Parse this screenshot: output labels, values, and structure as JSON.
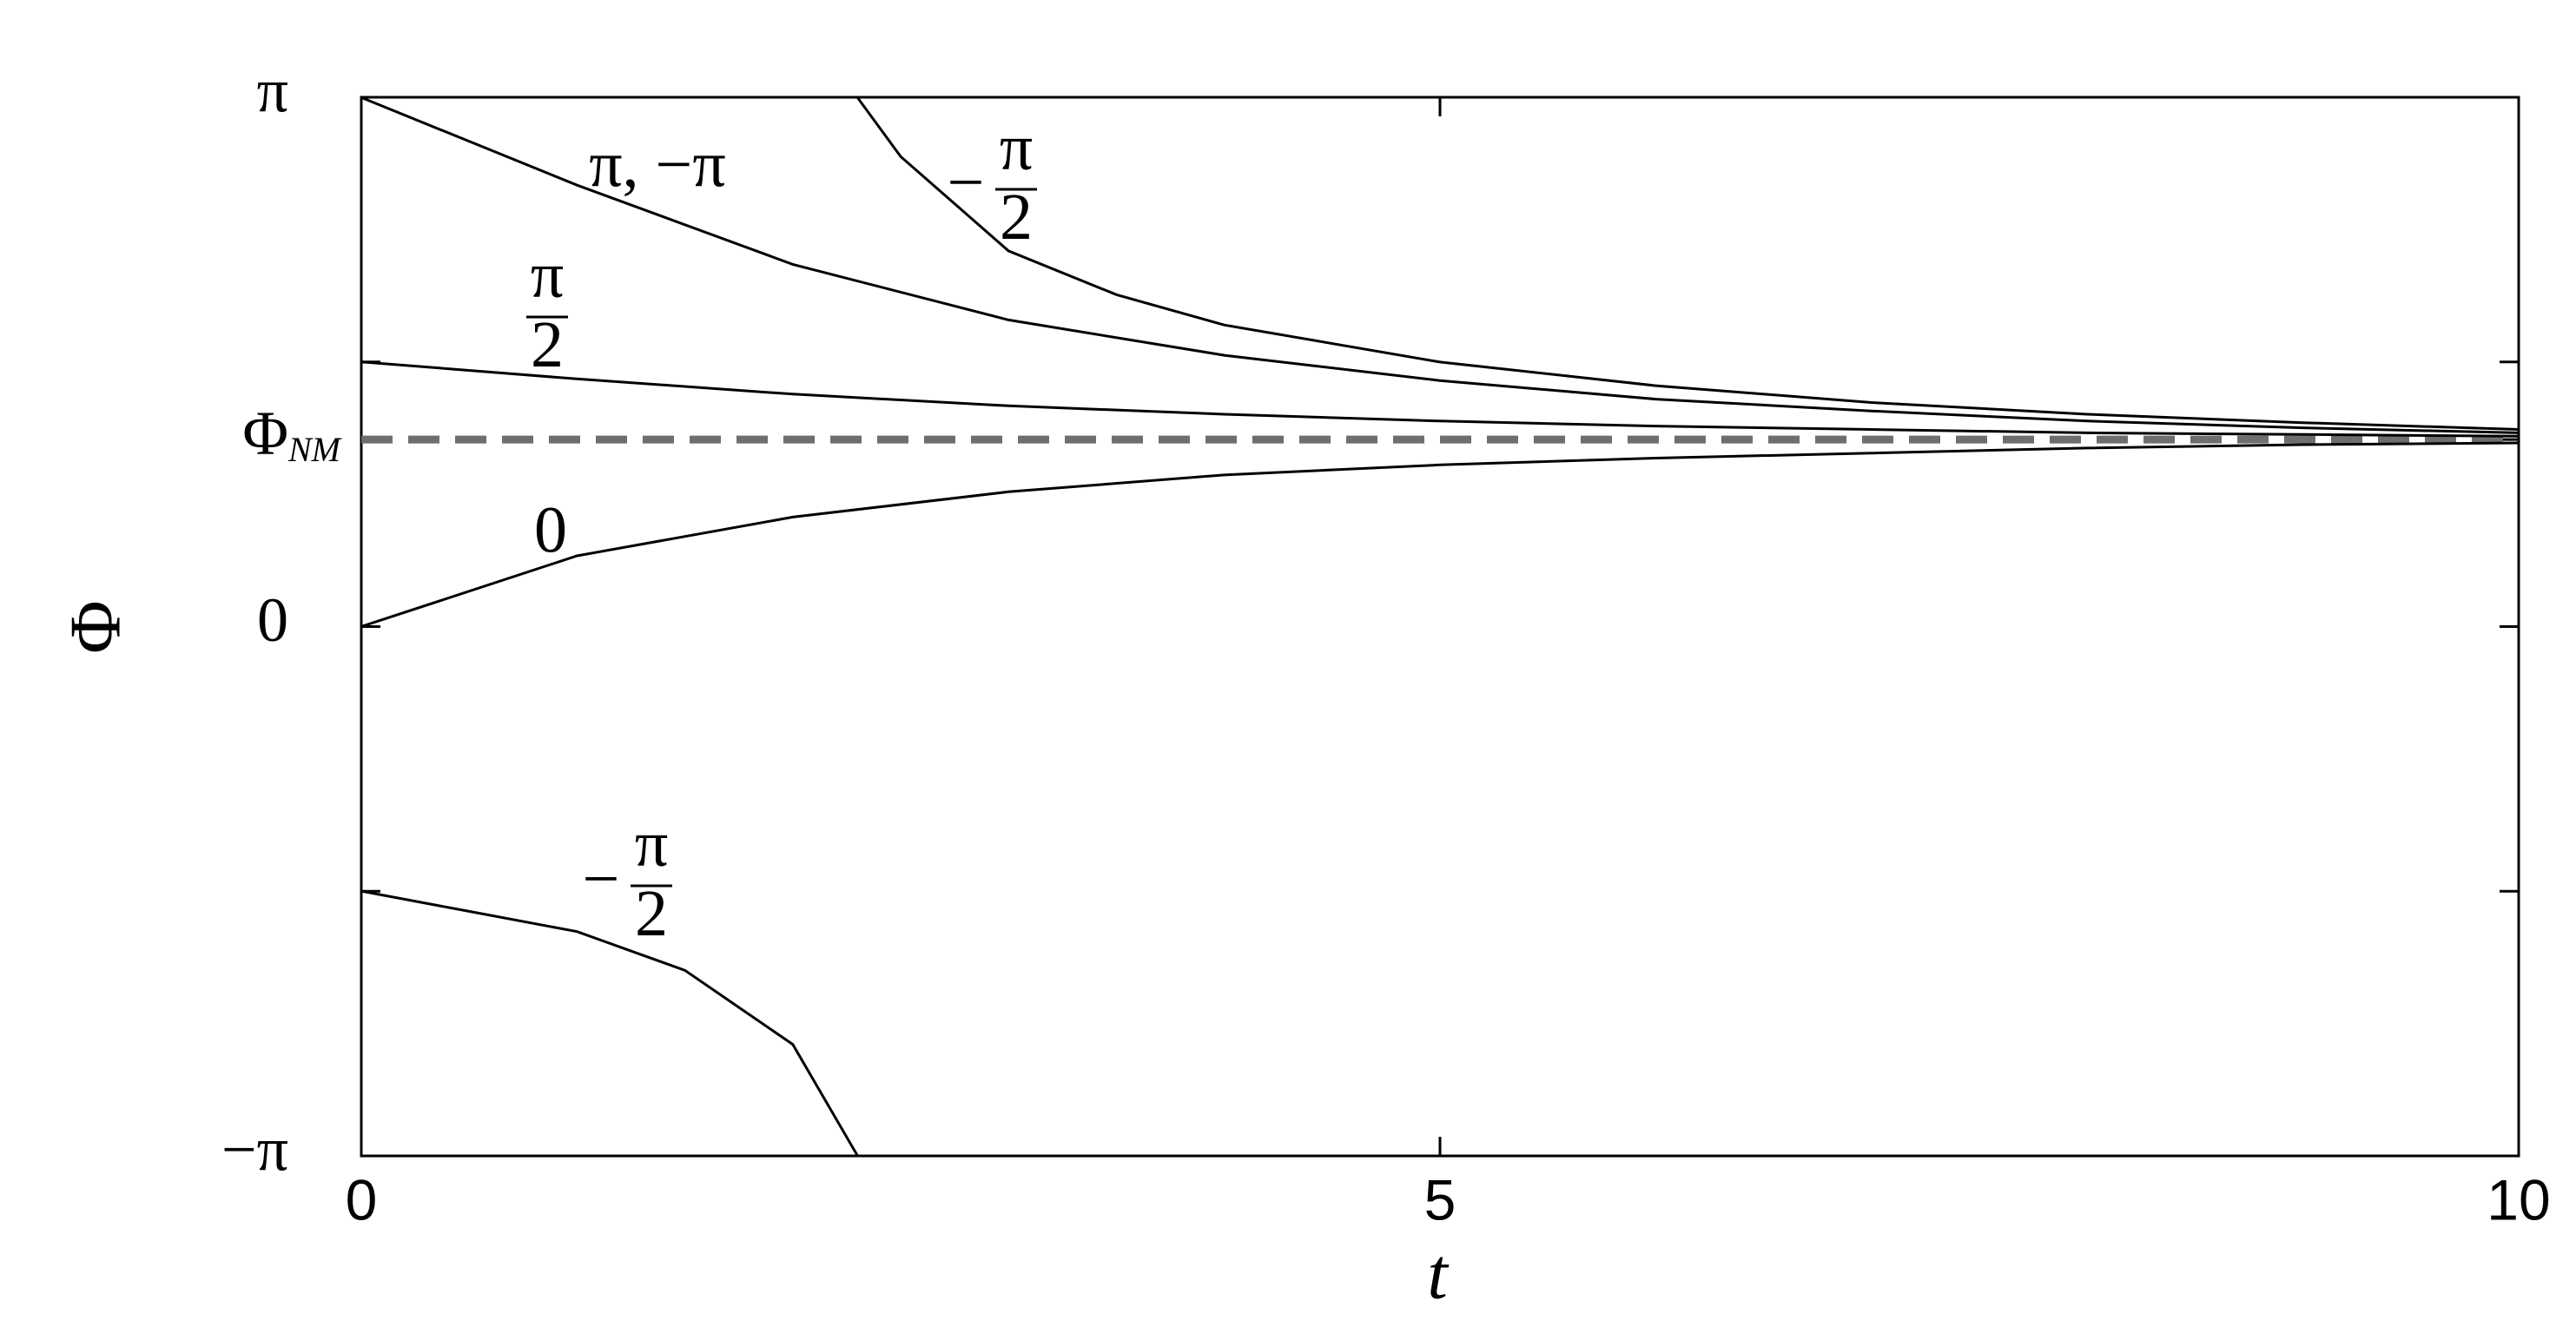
{
  "chart_data": {
    "type": "line",
    "xlabel": "t",
    "ylabel": "Φ",
    "xlim": [
      0,
      10
    ],
    "xticks": [
      0,
      5,
      10
    ],
    "ylim": [
      -3.1416,
      3.1416
    ],
    "yticks": [
      {
        "value": -3.1416,
        "label": "−π"
      },
      {
        "value": -1.5708,
        "label": null
      },
      {
        "value": 0,
        "label": "0"
      },
      {
        "value": 1.11,
        "label": "ΦNM"
      },
      {
        "value": 1.5708,
        "label": null
      },
      {
        "value": 3.1416,
        "label": "π"
      }
    ],
    "reference": {
      "y": 1.11,
      "color": "#6e6e6e",
      "style": "dashed"
    },
    "series": [
      {
        "name": "π, −π",
        "color": "#000000",
        "x": [
          0,
          1,
          2,
          3,
          4,
          5,
          6,
          7,
          8,
          9,
          10
        ],
        "values": [
          3.14,
          2.62,
          2.15,
          1.82,
          1.61,
          1.46,
          1.35,
          1.28,
          1.22,
          1.18,
          1.15
        ]
      },
      {
        "name": "π/2",
        "color": "#000000",
        "x": [
          0,
          1,
          2,
          3,
          4,
          5,
          6,
          7,
          8,
          9,
          10
        ],
        "values": [
          1.571,
          1.47,
          1.38,
          1.31,
          1.26,
          1.22,
          1.19,
          1.17,
          1.15,
          1.14,
          1.13
        ]
      },
      {
        "name": "0",
        "color": "#000000",
        "x": [
          0,
          1,
          2,
          3,
          4,
          5,
          6,
          7,
          8,
          9,
          10
        ],
        "values": [
          0,
          0.42,
          0.65,
          0.8,
          0.9,
          0.96,
          1.0,
          1.03,
          1.06,
          1.08,
          1.09
        ]
      },
      {
        "name": "−π/2",
        "color": "#000000",
        "x": [
          0,
          0.5,
          1,
          1.5,
          2,
          2.3,
          null,
          2.3,
          2.5,
          3,
          3.5,
          4,
          5,
          6,
          7,
          8,
          9,
          10
        ],
        "values": [
          -1.57,
          -1.69,
          -1.81,
          -2.04,
          -2.48,
          -3.14,
          null,
          3.14,
          2.79,
          2.23,
          1.97,
          1.79,
          1.57,
          1.43,
          1.33,
          1.26,
          1.21,
          1.17
        ]
      }
    ]
  }
}
